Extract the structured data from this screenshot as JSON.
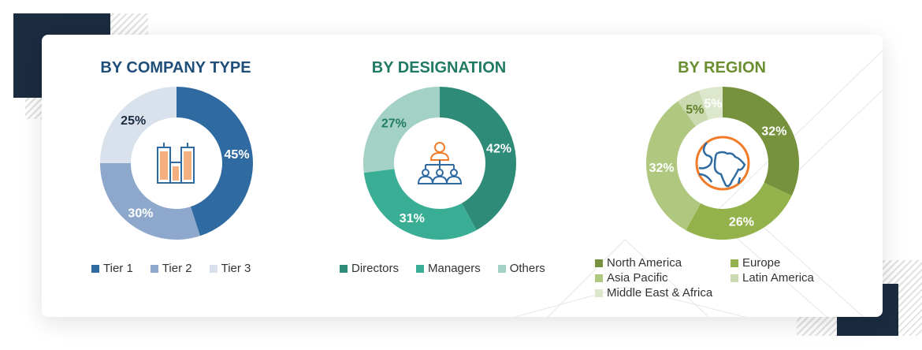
{
  "chart_data": [
    {
      "type": "pie",
      "title": "BY COMPANY TYPE",
      "title_color": "#1f4e79",
      "center_icon": "buildings-icon",
      "categories": [
        "Tier 1",
        "Tier 2",
        "Tier 3"
      ],
      "values": [
        45,
        30,
        25
      ],
      "labels": [
        "45%",
        "30%",
        "25%"
      ],
      "colors": [
        "#2f6aa1",
        "#8ea8cb",
        "#d9e1ec"
      ],
      "label_colors": [
        "#ffffff",
        "#ffffff",
        "#1b2b40"
      ],
      "legend": "bottom"
    },
    {
      "type": "pie",
      "title": "BY DESIGNATION",
      "title_color": "#217a64",
      "center_icon": "org-chart-icon",
      "categories": [
        "Directors",
        "Managers",
        "Others"
      ],
      "values": [
        42,
        31,
        27
      ],
      "labels": [
        "42%",
        "31%",
        "27%"
      ],
      "colors": [
        "#2d8b77",
        "#3aae95",
        "#a4d1c5"
      ],
      "label_colors": [
        "#ffffff",
        "#ffffff",
        "#217a64"
      ],
      "legend": "bottom"
    },
    {
      "type": "pie",
      "title": "BY REGION",
      "title_color": "#6b8e2f",
      "center_icon": "globe-icon",
      "categories": [
        "North America",
        "Europe",
        "Asia Pacific",
        "Latin America",
        "Middle East & Africa"
      ],
      "values": [
        32,
        26,
        32,
        5,
        5
      ],
      "labels": [
        "32%",
        "26%",
        "32%",
        "5%",
        "5%"
      ],
      "colors": [
        "#76923c",
        "#94b24b",
        "#b0c77f",
        "#cbdab0",
        "#dde7cc"
      ],
      "label_colors": [
        "#ffffff",
        "#ffffff",
        "#ffffff",
        "#5f7f2a",
        "#ffffff"
      ],
      "legend": "bottom"
    }
  ]
}
